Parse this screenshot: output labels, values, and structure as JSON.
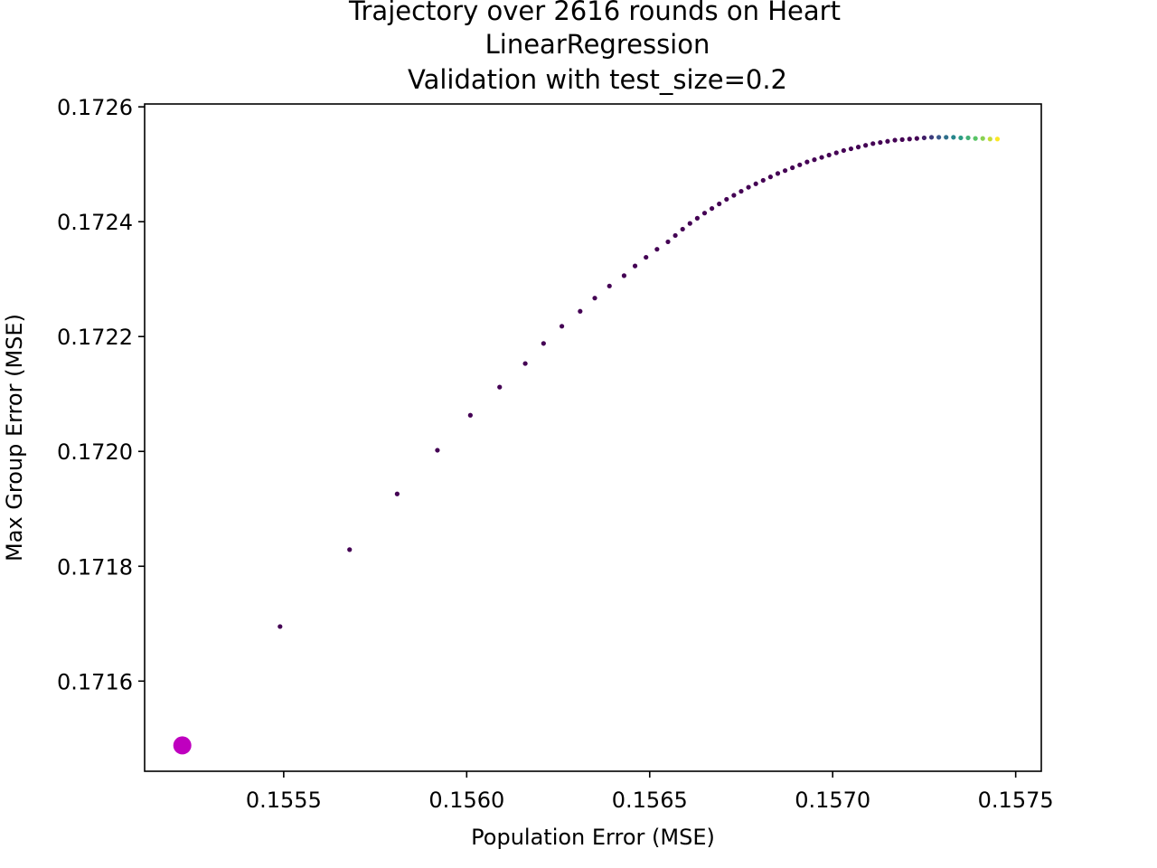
{
  "chart_data": {
    "type": "scatter",
    "title_lines": [
      "Trajectory over 2616 rounds on Heart",
      "LinearRegression",
      "Validation with test_size=0.2"
    ],
    "xlabel": "Population Error (MSE)",
    "ylabel": "Max Group Error (MSE)",
    "xlim": [
      0.15512,
      0.15757
    ],
    "ylim": [
      0.171443,
      0.172605
    ],
    "x_ticks": [
      0.1555,
      0.156,
      0.1565,
      0.157,
      0.1575
    ],
    "x_tick_labels": [
      "0.1555",
      "0.1560",
      "0.1565",
      "0.1570",
      "0.1575"
    ],
    "y_ticks": [
      0.1716,
      0.1718,
      0.172,
      0.1722,
      0.1724,
      0.1726
    ],
    "y_tick_labels": [
      "0.1716",
      "0.1718",
      "0.1720",
      "0.1722",
      "0.1724",
      "0.1726"
    ],
    "grid": false,
    "colormap": "viridis",
    "start_point": {
      "x": 0.155223,
      "y": 0.171488,
      "color": "#bf00bf"
    },
    "trajectory": {
      "x": [
        0.15549,
        0.15568,
        0.15581,
        0.15592,
        0.15601,
        0.15609,
        0.15616,
        0.15621,
        0.15626,
        0.15631,
        0.15635,
        0.15639,
        0.15643,
        0.15646,
        0.15649,
        0.15652,
        0.15655,
        0.15657,
        0.15659,
        0.15661,
        0.15663,
        0.15665,
        0.15667,
        0.15669,
        0.15671,
        0.15673,
        0.15675,
        0.15677,
        0.15679,
        0.15681,
        0.15683,
        0.15685,
        0.15687,
        0.15689,
        0.15691,
        0.15693,
        0.15695,
        0.15697,
        0.15699,
        0.15701,
        0.15703,
        0.15705,
        0.15707,
        0.15709,
        0.15711,
        0.15713,
        0.15715,
        0.15717,
        0.15719,
        0.15721,
        0.15723,
        0.15725,
        0.15727,
        0.15729,
        0.15731,
        0.15733,
        0.15735,
        0.15737,
        0.15739,
        0.15741,
        0.15743,
        0.15745
      ],
      "y": [
        0.171695,
        0.171829,
        0.171926,
        0.172002,
        0.172063,
        0.172112,
        0.172153,
        0.172188,
        0.172218,
        0.172244,
        0.172267,
        0.172288,
        0.172306,
        0.172323,
        0.172338,
        0.172352,
        0.172365,
        0.172376,
        0.172387,
        0.172397,
        0.172406,
        0.172415,
        0.172423,
        0.172431,
        0.172439,
        0.172446,
        0.172453,
        0.17246,
        0.172466,
        0.172472,
        0.172478,
        0.172484,
        0.172489,
        0.172494,
        0.172499,
        0.172504,
        0.172508,
        0.172512,
        0.172516,
        0.17252,
        0.172524,
        0.172527,
        0.17253,
        0.172533,
        0.172536,
        0.172538,
        0.17254,
        0.172542,
        0.172543,
        0.172544,
        0.172545,
        0.172546,
        0.172547,
        0.172547,
        0.172547,
        0.172547,
        0.172546,
        0.172546,
        0.172545,
        0.172545,
        0.172544,
        0.172544
      ]
    }
  }
}
